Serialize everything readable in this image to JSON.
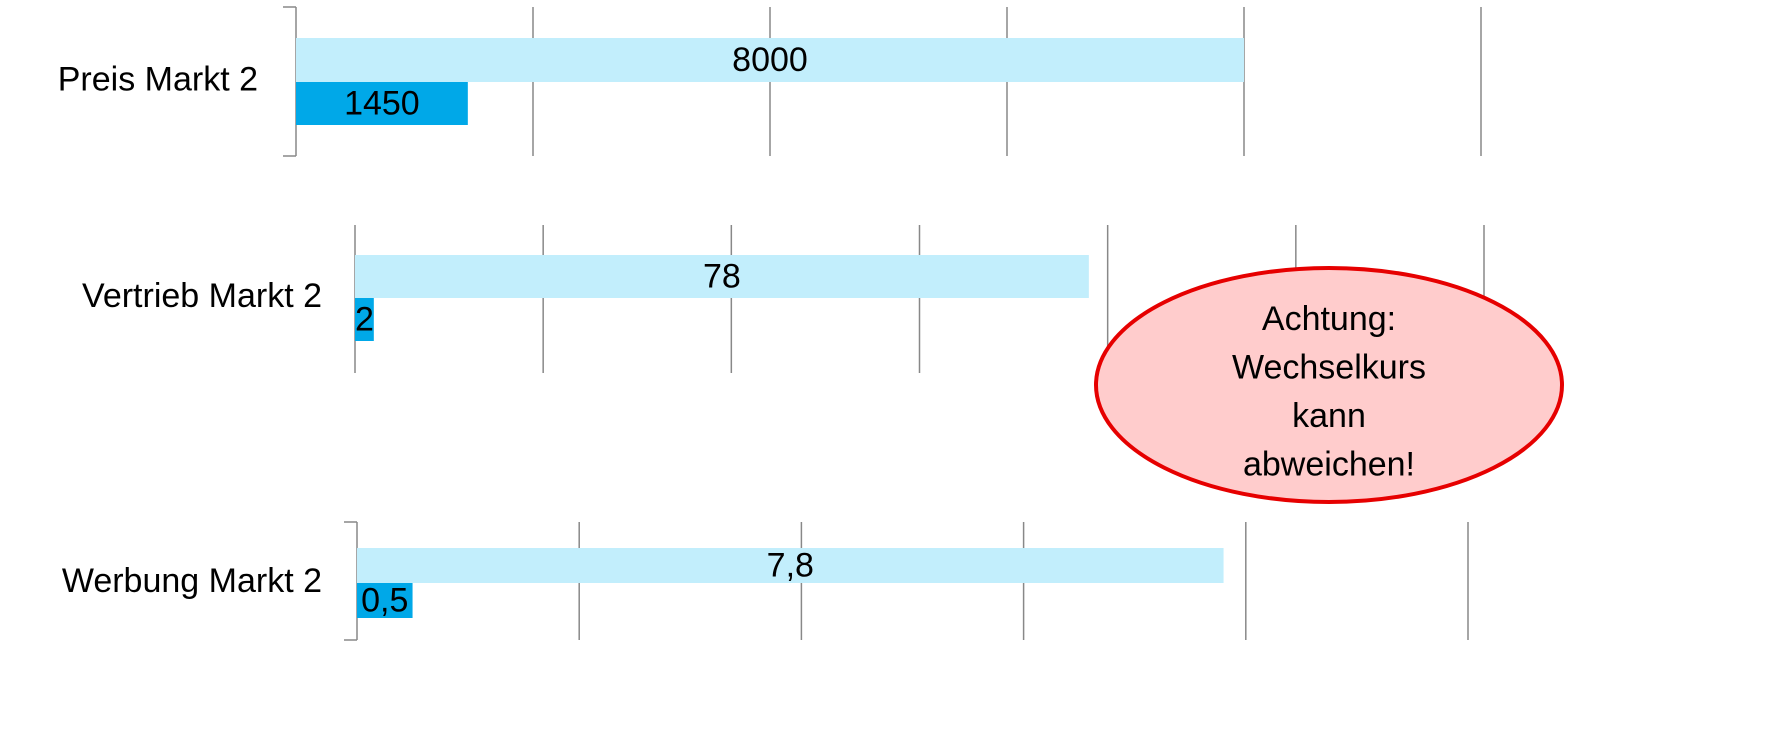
{
  "chart_data": [
    {
      "type": "bar",
      "orientation": "horizontal",
      "categories": [
        "Preis Markt 2"
      ],
      "series": [
        {
          "color": "#c2eefc",
          "values": [
            8000
          ]
        },
        {
          "color": "#00a8e8",
          "values": [
            1450
          ]
        }
      ],
      "xlim": [
        0,
        10000
      ],
      "xticks": [
        0,
        2000,
        4000,
        6000,
        8000,
        10000
      ],
      "grid": true
    },
    {
      "type": "bar",
      "orientation": "horizontal",
      "categories": [
        "Vertrieb Markt 2"
      ],
      "series": [
        {
          "color": "#c2eefc",
          "values": [
            78
          ]
        },
        {
          "color": "#00a8e8",
          "values": [
            2
          ]
        }
      ],
      "xlim": [
        0,
        120
      ],
      "xticks": [
        0,
        20,
        40,
        60,
        80,
        100,
        120
      ],
      "grid": true
    },
    {
      "type": "bar",
      "orientation": "horizontal",
      "categories": [
        "Werbung Markt 2"
      ],
      "series": [
        {
          "color": "#c2eefc",
          "values": [
            7.8
          ],
          "value_labels": [
            "7,8"
          ]
        },
        {
          "color": "#00a8e8",
          "values": [
            0.5
          ],
          "value_labels": [
            "0,5"
          ]
        }
      ],
      "xlim": [
        0,
        10
      ],
      "xticks": [
        0,
        2,
        4,
        6,
        8,
        10
      ],
      "grid": true
    }
  ],
  "annotation": [
    "Achtung:",
    "Wechselkurs",
    "kann",
    "abweichen!"
  ]
}
